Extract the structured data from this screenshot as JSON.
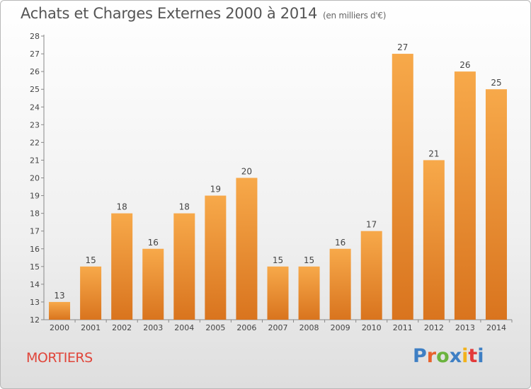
{
  "header": {
    "title": "Achats et Charges Externes 2000 à 2014",
    "subtitle": "(en milliers d'€)"
  },
  "footer": {
    "city": "MORTIERS",
    "logo_text": "Proxiti",
    "logo_colors": [
      "#3e7fc4",
      "#e8622d",
      "#6bb33e",
      "#3e7fc4",
      "#f2b21b",
      "#e33a3a",
      "#3e7fc4"
    ]
  },
  "colors": {
    "bar_light": "#f7a94a",
    "bar_dark": "#d9741e",
    "axis": "#888888"
  },
  "chart_data": {
    "type": "bar",
    "title": "Achats et Charges Externes 2000 à 2014",
    "subtitle": "(en milliers d'€)",
    "categories": [
      "2000",
      "2001",
      "2002",
      "2003",
      "2004",
      "2005",
      "2006",
      "2007",
      "2008",
      "2009",
      "2010",
      "2011",
      "2012",
      "2013",
      "2014"
    ],
    "values": [
      13,
      15,
      18,
      16,
      18,
      19,
      20,
      15,
      15,
      16,
      17,
      27,
      21,
      26,
      25
    ],
    "ylim": [
      12,
      28
    ],
    "yticks": [
      12,
      13,
      14,
      15,
      16,
      17,
      18,
      19,
      20,
      21,
      22,
      23,
      24,
      25,
      26,
      27,
      28
    ],
    "grid": false,
    "data_labels": true
  }
}
